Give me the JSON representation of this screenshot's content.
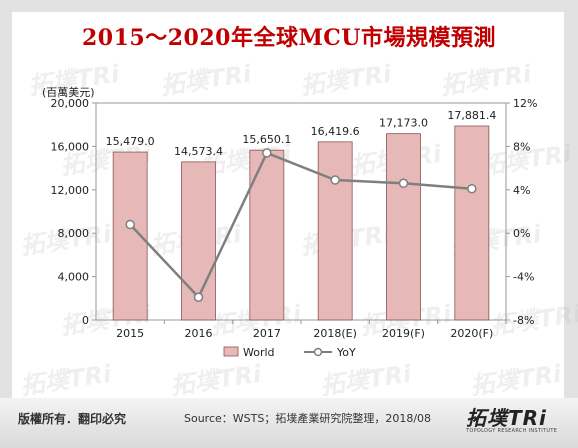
{
  "title": "2015～2020年全球MCU市場規模預測",
  "chart_data": {
    "type": "bar+line",
    "unit_label": "(百萬美元)",
    "categories": [
      "2015",
      "2016",
      "2017",
      "2018(E)",
      "2019(F)",
      "2020(F)"
    ],
    "series": [
      {
        "name": "World",
        "kind": "bar",
        "axis": "left",
        "values": [
          15479.0,
          14573.4,
          15650.1,
          16419.6,
          17173.0,
          17881.4
        ],
        "labels": [
          "15,479.0",
          "14,573.4",
          "15,650.1",
          "16,419.6",
          "17,173.0",
          "17,881.4"
        ]
      },
      {
        "name": "YoY",
        "kind": "line",
        "axis": "right",
        "values": [
          0.8,
          -5.9,
          7.4,
          4.9,
          4.6,
          4.1
        ]
      }
    ],
    "y_left": {
      "min": 0,
      "max": 20000,
      "ticks": [
        "0",
        "4,000",
        "8,000",
        "12,000",
        "16,000",
        "20,000"
      ]
    },
    "y_right": {
      "min": -8,
      "max": 12,
      "ticks": [
        "-8%",
        "-4%",
        "0%",
        "4%",
        "8%",
        "12%"
      ]
    },
    "legend_position": "bottom",
    "colors": {
      "bar_fill": "#e6b9b8",
      "bar_stroke": "#8c5453",
      "line": "#7f7f7f",
      "marker_fill": "#ffffff"
    }
  },
  "footer": {
    "rights": "版權所有．翻印必究",
    "source": "Source：WSTS；拓墣產業研究院整理，2018/08",
    "brand": "拓墣TRi",
    "brand_sub": "TOPOLOGY RESEARCH INSTITUTE"
  },
  "watermark_text": "拓墣TRi"
}
